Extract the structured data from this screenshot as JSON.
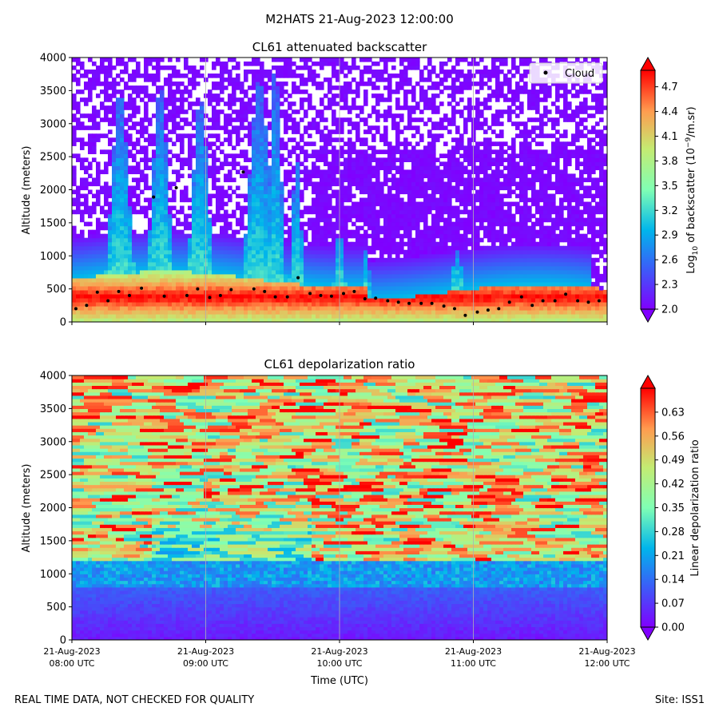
{
  "suptitle": "M2HATS 21-Aug-2023 12:00:00",
  "footer": {
    "left": "REAL TIME DATA, NOT CHECKED FOR QUALITY",
    "right": "Site: ISS1"
  },
  "chart_data": [
    {
      "type": "heatmap",
      "title": "CL61 attenuated backscatter",
      "xlabel": "",
      "ylabel": "Altitude (meters)",
      "ylim": [
        0,
        4000
      ],
      "yticks": [
        "0",
        "500",
        "1000",
        "1500",
        "2000",
        "2500",
        "3000",
        "3500",
        "4000"
      ],
      "xlim_hours_utc": [
        8.0,
        12.0
      ],
      "colorbar": {
        "label_prefix": "Log",
        "label_sub": "10",
        "label_mid": " of backscatter (10",
        "label_sup": "−9",
        "label_suffix": "/m.sr)",
        "range": [
          2.0,
          4.9
        ],
        "ticks": [
          "2.0",
          "2.3",
          "2.6",
          "2.9",
          "3.2",
          "3.5",
          "3.8",
          "4.1",
          "4.4",
          "4.7"
        ],
        "colormap": "rainbow"
      },
      "legend": {
        "label": "Cloud",
        "position": "top-right"
      },
      "cloud_base_series": {
        "name": "Cloud",
        "x_hours": [
          8.03,
          8.11,
          8.19,
          8.27,
          8.35,
          8.43,
          8.52,
          8.61,
          8.69,
          8.78,
          8.86,
          8.94,
          9.03,
          9.11,
          9.19,
          9.28,
          9.36,
          9.44,
          9.52,
          9.61,
          9.69,
          9.78,
          9.86,
          9.94,
          10.03,
          10.11,
          10.19,
          10.27,
          10.36,
          10.44,
          10.52,
          10.61,
          10.69,
          10.78,
          10.86,
          10.94,
          11.03,
          11.11,
          11.19,
          11.27,
          11.36,
          11.44,
          11.52,
          11.61,
          11.69,
          11.78,
          11.86,
          11.94
        ],
        "altitudes_m": [
          200,
          250,
          450,
          320,
          460,
          400,
          510,
          1890,
          390,
          2030,
          400,
          500,
          370,
          400,
          490,
          2270,
          500,
          460,
          380,
          380,
          670,
          430,
          400,
          390,
          430,
          460,
          350,
          360,
          320,
          300,
          280,
          280,
          280,
          240,
          200,
          100,
          150,
          180,
          200,
          300,
          380,
          250,
          320,
          320,
          420,
          320,
          300,
          320
        ]
      }
    },
    {
      "type": "heatmap",
      "title": "CL61 depolarization ratio",
      "xlabel": "Time (UTC)",
      "ylabel": "Altitude (meters)",
      "ylim": [
        0,
        4000
      ],
      "yticks": [
        "0",
        "500",
        "1000",
        "1500",
        "2000",
        "2500",
        "3000",
        "3500",
        "4000"
      ],
      "xlim_hours_utc": [
        8.0,
        12.0
      ],
      "xticks": [
        {
          "date": "21-Aug-2023",
          "time": "08:00 UTC"
        },
        {
          "date": "21-Aug-2023",
          "time": "09:00 UTC"
        },
        {
          "date": "21-Aug-2023",
          "time": "10:00 UTC"
        },
        {
          "date": "21-Aug-2023",
          "time": "11:00 UTC"
        },
        {
          "date": "21-Aug-2023",
          "time": "12:00 UTC"
        }
      ],
      "colorbar": {
        "label": "Linear depolarization ratio",
        "range": [
          0.0,
          0.7
        ],
        "ticks": [
          "0.00",
          "0.07",
          "0.14",
          "0.21",
          "0.28",
          "0.35",
          "0.42",
          "0.49",
          "0.56",
          "0.63"
        ],
        "colormap": "rainbow"
      }
    }
  ]
}
